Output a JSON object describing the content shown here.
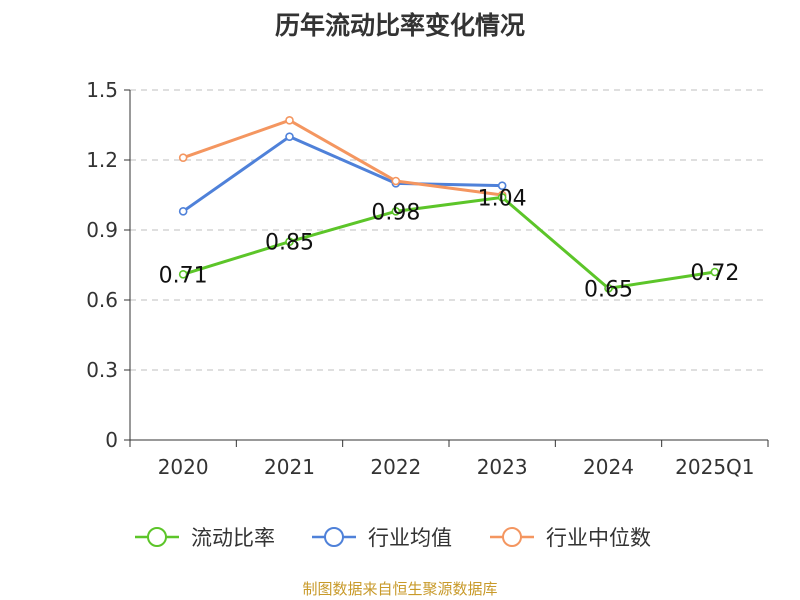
{
  "title": "历年流动比率变化情况",
  "source": "制图数据来自恒生聚源数据库",
  "chart_data": {
    "type": "line",
    "title": "历年流动比率变化情况",
    "categories": [
      "2020",
      "2021",
      "2022",
      "2023",
      "2024",
      "2025Q1"
    ],
    "ylim": [
      0,
      1.5
    ],
    "yticks": [
      "0",
      "0.3",
      "0.6",
      "0.9",
      "1.2",
      "1.5"
    ],
    "grid": true,
    "legend_position": "bottom",
    "series": [
      {
        "name": "流动比率",
        "color": "#5cc529",
        "values": [
          0.71,
          0.85,
          0.98,
          1.04,
          0.65,
          0.72
        ],
        "labels": [
          "0.71",
          "0.85",
          "0.98",
          "1.04",
          "0.65",
          "0.72"
        ]
      },
      {
        "name": "行业均值",
        "color": "#4f81d9",
        "values": [
          0.98,
          1.3,
          1.1,
          1.09,
          null,
          null
        ]
      },
      {
        "name": "行业中位数",
        "color": "#f49660",
        "values": [
          1.21,
          1.37,
          1.11,
          1.05,
          null,
          null
        ]
      }
    ]
  }
}
